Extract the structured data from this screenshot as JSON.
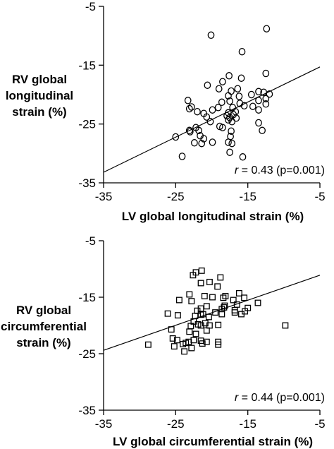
{
  "chart_data": [
    {
      "type": "scatter",
      "marker": "circle",
      "xlabel": "LV global longitudinal strain (%)",
      "ylabel": [
        "RV global",
        "longitudinal",
        "strain (%)"
      ],
      "xlim": [
        -35,
        -5
      ],
      "ylim": [
        -35,
        -5
      ],
      "xticks": [
        "-35",
        "-25",
        "-15",
        "-5"
      ],
      "yticks": [
        "-5",
        "-15",
        "-25",
        "-35"
      ],
      "annotation": {
        "r_symbol": "r",
        "text": " = 0.43 (p=0.001)"
      },
      "regression_line": {
        "x": [
          -35,
          -5
        ],
        "y": [
          -33.2,
          -15.3
        ]
      },
      "points": [
        {
          "x": -12.4,
          "y": -8.8
        },
        {
          "x": -20.1,
          "y": -9.9
        },
        {
          "x": -15.8,
          "y": -12.7
        },
        {
          "x": -12.5,
          "y": -16.4
        },
        {
          "x": -17.6,
          "y": -16.8
        },
        {
          "x": -15.9,
          "y": -17.2
        },
        {
          "x": -18.5,
          "y": -17.8
        },
        {
          "x": -20.6,
          "y": -18.4
        },
        {
          "x": -19.0,
          "y": -19.0
        },
        {
          "x": -16.4,
          "y": -19.0
        },
        {
          "x": -17.3,
          "y": -19.4
        },
        {
          "x": -13.5,
          "y": -19.5
        },
        {
          "x": -12.8,
          "y": -19.6
        },
        {
          "x": -12.0,
          "y": -19.9
        },
        {
          "x": -14.5,
          "y": -20.0
        },
        {
          "x": -17.7,
          "y": -20.2
        },
        {
          "x": -16.2,
          "y": -20.3
        },
        {
          "x": -12.5,
          "y": -20.7
        },
        {
          "x": -23.3,
          "y": -21.0
        },
        {
          "x": -13.5,
          "y": -21.0
        },
        {
          "x": -17.5,
          "y": -21.1
        },
        {
          "x": -18.6,
          "y": -21.3
        },
        {
          "x": -16.1,
          "y": -21.5
        },
        {
          "x": -12.5,
          "y": -21.6
        },
        {
          "x": -15.5,
          "y": -21.9
        },
        {
          "x": -14.3,
          "y": -22.0
        },
        {
          "x": -22.8,
          "y": -22.1
        },
        {
          "x": -19.1,
          "y": -22.2
        },
        {
          "x": -17.1,
          "y": -22.2
        },
        {
          "x": -23.1,
          "y": -22.4
        },
        {
          "x": -19.9,
          "y": -22.6
        },
        {
          "x": -13.5,
          "y": -22.6
        },
        {
          "x": -22.0,
          "y": -22.9
        },
        {
          "x": -16.7,
          "y": -22.9
        },
        {
          "x": -17.7,
          "y": -23.1
        },
        {
          "x": -21.1,
          "y": -23.2
        },
        {
          "x": -17.0,
          "y": -23.4
        },
        {
          "x": -17.9,
          "y": -23.6
        },
        {
          "x": -20.7,
          "y": -23.8
        },
        {
          "x": -17.5,
          "y": -23.9
        },
        {
          "x": -16.6,
          "y": -24.0
        },
        {
          "x": -17.7,
          "y": -24.3
        },
        {
          "x": -17.2,
          "y": -24.6
        },
        {
          "x": -20.2,
          "y": -24.6
        },
        {
          "x": -13.5,
          "y": -24.8
        },
        {
          "x": -18.9,
          "y": -25.4
        },
        {
          "x": -22.2,
          "y": -25.6
        },
        {
          "x": -18.5,
          "y": -25.6
        },
        {
          "x": -23.1,
          "y": -26.1
        },
        {
          "x": -21.8,
          "y": -26.1
        },
        {
          "x": -13.0,
          "y": -26.1
        },
        {
          "x": -17.3,
          "y": -26.2
        },
        {
          "x": -23.0,
          "y": -26.3
        },
        {
          "x": -21.6,
          "y": -27.0
        },
        {
          "x": -17.4,
          "y": -27.1
        },
        {
          "x": -25.0,
          "y": -27.2
        },
        {
          "x": -21.1,
          "y": -27.5
        },
        {
          "x": -19.9,
          "y": -28.1
        },
        {
          "x": -17.7,
          "y": -28.1
        },
        {
          "x": -22.4,
          "y": -28.2
        },
        {
          "x": -17.2,
          "y": -28.3
        },
        {
          "x": -21.4,
          "y": -28.3
        },
        {
          "x": -17.5,
          "y": -29.8
        },
        {
          "x": -24.1,
          "y": -30.5
        },
        {
          "x": -15.7,
          "y": -30.6
        }
      ]
    },
    {
      "type": "scatter",
      "marker": "square",
      "xlabel": "LV global circumferential strain (%)",
      "ylabel": [
        "RV global",
        "circumferential",
        "strain (%)"
      ],
      "xlim": [
        -35,
        -5
      ],
      "ylim": [
        -35,
        -5
      ],
      "xticks": [
        "-35",
        "-25",
        "-15",
        "-5"
      ],
      "yticks": [
        "-5",
        "-15",
        "-25",
        "-35"
      ],
      "annotation": {
        "r_symbol": "r",
        "text": " = 0.44 (p=0.001)"
      },
      "regression_line": {
        "x": [
          -35,
          -5
        ],
        "y": [
          -24.4,
          -11.1
        ]
      },
      "points": [
        {
          "x": -21.4,
          "y": -10.3
        },
        {
          "x": -22.2,
          "y": -10.6
        },
        {
          "x": -22.6,
          "y": -11.1
        },
        {
          "x": -18.8,
          "y": -11.5
        },
        {
          "x": -20.3,
          "y": -12.3
        },
        {
          "x": -21.5,
          "y": -12.5
        },
        {
          "x": -19.2,
          "y": -13.1
        },
        {
          "x": -16.2,
          "y": -14.3
        },
        {
          "x": -23.1,
          "y": -14.5
        },
        {
          "x": -18.1,
          "y": -14.8
        },
        {
          "x": -21.0,
          "y": -14.8
        },
        {
          "x": -19.9,
          "y": -15.0
        },
        {
          "x": -18.4,
          "y": -15.1
        },
        {
          "x": -15.5,
          "y": -15.1
        },
        {
          "x": -17.0,
          "y": -15.5
        },
        {
          "x": -24.5,
          "y": -15.5
        },
        {
          "x": -22.8,
          "y": -15.7
        },
        {
          "x": -13.6,
          "y": -16.0
        },
        {
          "x": -16.5,
          "y": -16.3
        },
        {
          "x": -18.2,
          "y": -16.5
        },
        {
          "x": -20.7,
          "y": -16.6
        },
        {
          "x": -18.3,
          "y": -16.8
        },
        {
          "x": -15.0,
          "y": -16.9
        },
        {
          "x": -21.5,
          "y": -17.0
        },
        {
          "x": -18.6,
          "y": -17.1
        },
        {
          "x": -16.8,
          "y": -17.3
        },
        {
          "x": -22.0,
          "y": -17.4
        },
        {
          "x": -15.4,
          "y": -17.5
        },
        {
          "x": -19.5,
          "y": -17.7
        },
        {
          "x": -16.8,
          "y": -17.7
        },
        {
          "x": -26.1,
          "y": -17.9
        },
        {
          "x": -21.2,
          "y": -18.0
        },
        {
          "x": -18.6,
          "y": -18.0
        },
        {
          "x": -15.9,
          "y": -18.0
        },
        {
          "x": -21.5,
          "y": -18.1
        },
        {
          "x": -24.7,
          "y": -18.2
        },
        {
          "x": -22.3,
          "y": -18.3
        },
        {
          "x": -20.4,
          "y": -18.5
        },
        {
          "x": -22.5,
          "y": -19.3
        },
        {
          "x": -20.9,
          "y": -19.6
        },
        {
          "x": -21.9,
          "y": -19.8
        },
        {
          "x": -19.1,
          "y": -19.9
        },
        {
          "x": -21.5,
          "y": -20.0
        },
        {
          "x": -20.3,
          "y": -20.0
        },
        {
          "x": -22.9,
          "y": -20.1
        },
        {
          "x": -9.8,
          "y": -20.0
        },
        {
          "x": -25.6,
          "y": -20.7
        },
        {
          "x": -20.7,
          "y": -20.9
        },
        {
          "x": -23.1,
          "y": -21.1
        },
        {
          "x": -22.2,
          "y": -21.5
        },
        {
          "x": -25.4,
          "y": -22.3
        },
        {
          "x": -24.8,
          "y": -22.6
        },
        {
          "x": -22.5,
          "y": -22.6
        },
        {
          "x": -21.5,
          "y": -22.7
        },
        {
          "x": -23.2,
          "y": -22.9
        },
        {
          "x": -19.1,
          "y": -22.9
        },
        {
          "x": -20.7,
          "y": -22.9
        },
        {
          "x": -23.6,
          "y": -23.1
        },
        {
          "x": -21.3,
          "y": -23.2
        },
        {
          "x": -24.0,
          "y": -23.3
        },
        {
          "x": -19.1,
          "y": -23.4
        },
        {
          "x": -28.8,
          "y": -23.4
        },
        {
          "x": -25.2,
          "y": -23.7
        },
        {
          "x": -22.8,
          "y": -24.0
        },
        {
          "x": -23.8,
          "y": -24.6
        }
      ]
    }
  ]
}
